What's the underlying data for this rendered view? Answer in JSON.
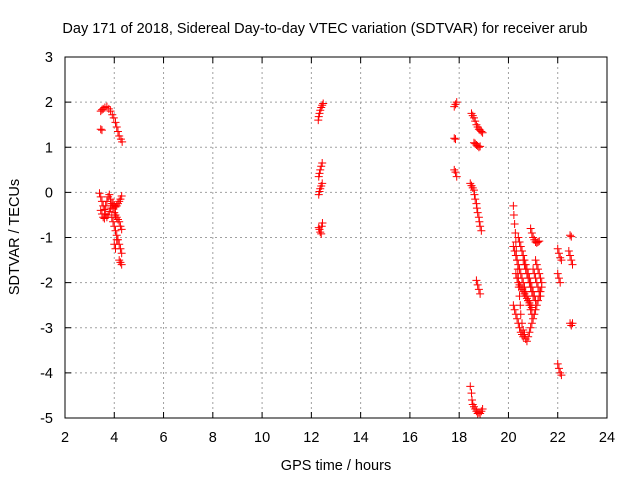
{
  "chart_data": {
    "type": "scatter",
    "title": "Day 171 of 2018, Sidereal Day-to-day VTEC variation (SDTVAR) for receiver arub",
    "xlabel": "GPS time / hours",
    "ylabel": "SDTVAR / TECUs",
    "xlim": [
      2,
      24
    ],
    "ylim": [
      -5,
      3
    ],
    "xticks": [
      2,
      4,
      6,
      8,
      10,
      12,
      14,
      16,
      18,
      20,
      22,
      24
    ],
    "yticks": [
      -5,
      -4,
      -3,
      -2,
      -1,
      0,
      1,
      2,
      3
    ],
    "grid": true,
    "marker": "+",
    "marker_color": "#ff0000",
    "series": [
      {
        "name": "SDTVAR",
        "points": [
          [
            3.45,
            1.8
          ],
          [
            3.5,
            1.83
          ],
          [
            3.55,
            1.85
          ],
          [
            3.62,
            1.88
          ],
          [
            3.7,
            1.9
          ],
          [
            3.78,
            1.85
          ],
          [
            3.85,
            1.8
          ],
          [
            3.92,
            1.72
          ],
          [
            3.98,
            1.65
          ],
          [
            4.05,
            1.55
          ],
          [
            4.1,
            1.45
          ],
          [
            4.15,
            1.35
          ],
          [
            4.2,
            1.25
          ],
          [
            4.27,
            1.18
          ],
          [
            4.32,
            1.12
          ],
          [
            3.45,
            1.4
          ],
          [
            3.5,
            1.38
          ],
          [
            3.4,
            -0.02
          ],
          [
            3.45,
            -0.1
          ],
          [
            3.5,
            -0.2
          ],
          [
            3.55,
            -0.3
          ],
          [
            3.6,
            -0.38
          ],
          [
            3.65,
            -0.48
          ],
          [
            3.7,
            -0.55
          ],
          [
            3.75,
            -0.5
          ],
          [
            3.8,
            -0.42
          ],
          [
            3.85,
            -0.35
          ],
          [
            3.9,
            -0.3
          ],
          [
            3.95,
            -0.25
          ],
          [
            4.0,
            -0.28
          ],
          [
            4.05,
            -0.32
          ],
          [
            4.1,
            -0.3
          ],
          [
            4.15,
            -0.25
          ],
          [
            4.2,
            -0.2
          ],
          [
            4.25,
            -0.15
          ],
          [
            4.3,
            -0.08
          ],
          [
            3.45,
            -0.4
          ],
          [
            3.5,
            -0.48
          ],
          [
            3.55,
            -0.55
          ],
          [
            3.6,
            -0.58
          ],
          [
            3.65,
            -0.3
          ],
          [
            3.7,
            -0.2
          ],
          [
            3.75,
            -0.1
          ],
          [
            3.8,
            -0.05
          ],
          [
            3.85,
            -0.15
          ],
          [
            3.9,
            -0.25
          ],
          [
            3.95,
            -0.35
          ],
          [
            4.0,
            -0.45
          ],
          [
            4.05,
            -0.5
          ],
          [
            4.1,
            -0.55
          ],
          [
            4.15,
            -0.6
          ],
          [
            4.2,
            -0.65
          ],
          [
            4.25,
            -0.75
          ],
          [
            4.3,
            -0.82
          ],
          [
            3.9,
            -0.55
          ],
          [
            3.95,
            -0.65
          ],
          [
            4.0,
            -0.75
          ],
          [
            4.05,
            -0.85
          ],
          [
            4.1,
            -0.95
          ],
          [
            4.15,
            -1.05
          ],
          [
            4.2,
            -1.15
          ],
          [
            4.25,
            -1.25
          ],
          [
            4.3,
            -1.35
          ],
          [
            4.0,
            -1.15
          ],
          [
            4.05,
            -1.25
          ],
          [
            4.1,
            -1.05
          ],
          [
            4.2,
            -1.5
          ],
          [
            4.25,
            -1.55
          ],
          [
            4.3,
            -1.6
          ],
          [
            12.28,
            1.6
          ],
          [
            12.3,
            1.68
          ],
          [
            12.33,
            1.75
          ],
          [
            12.36,
            1.82
          ],
          [
            12.4,
            1.88
          ],
          [
            12.44,
            1.93
          ],
          [
            12.48,
            1.97
          ],
          [
            12.3,
            0.35
          ],
          [
            12.33,
            0.42
          ],
          [
            12.36,
            0.5
          ],
          [
            12.4,
            0.58
          ],
          [
            12.44,
            0.65
          ],
          [
            12.3,
            -0.05
          ],
          [
            12.33,
            0.02
          ],
          [
            12.36,
            0.08
          ],
          [
            12.4,
            0.14
          ],
          [
            12.44,
            0.2
          ],
          [
            12.3,
            -0.78
          ],
          [
            12.33,
            -0.82
          ],
          [
            12.36,
            -0.88
          ],
          [
            12.4,
            -0.92
          ],
          [
            12.42,
            -0.75
          ],
          [
            12.45,
            -0.68
          ],
          [
            17.8,
            1.9
          ],
          [
            17.85,
            1.95
          ],
          [
            17.9,
            2.0
          ],
          [
            17.8,
            1.2
          ],
          [
            17.85,
            1.18
          ],
          [
            17.8,
            0.5
          ],
          [
            17.85,
            0.45
          ],
          [
            17.9,
            0.35
          ],
          [
            18.5,
            1.75
          ],
          [
            18.55,
            1.7
          ],
          [
            18.6,
            1.65
          ],
          [
            18.65,
            1.58
          ],
          [
            18.7,
            1.5
          ],
          [
            18.75,
            1.45
          ],
          [
            18.8,
            1.4
          ],
          [
            18.85,
            1.38
          ],
          [
            18.9,
            1.35
          ],
          [
            18.95,
            1.32
          ],
          [
            18.6,
            1.1
          ],
          [
            18.65,
            1.08
          ],
          [
            18.7,
            1.05
          ],
          [
            18.75,
            1.03
          ],
          [
            18.8,
            1.0
          ],
          [
            18.85,
            1.02
          ],
          [
            18.45,
            0.2
          ],
          [
            18.5,
            0.15
          ],
          [
            18.55,
            0.1
          ],
          [
            18.6,
            0.05
          ],
          [
            18.62,
            -0.05
          ],
          [
            18.65,
            -0.15
          ],
          [
            18.7,
            -0.25
          ],
          [
            18.72,
            -0.35
          ],
          [
            18.75,
            -0.45
          ],
          [
            18.8,
            -0.55
          ],
          [
            18.82,
            -0.65
          ],
          [
            18.85,
            -0.75
          ],
          [
            18.9,
            -0.85
          ],
          [
            18.7,
            -1.95
          ],
          [
            18.75,
            -2.05
          ],
          [
            18.8,
            -2.15
          ],
          [
            18.85,
            -2.25
          ],
          [
            18.45,
            -4.3
          ],
          [
            18.5,
            -4.45
          ],
          [
            18.52,
            -4.6
          ],
          [
            18.55,
            -4.7
          ],
          [
            18.6,
            -4.75
          ],
          [
            18.65,
            -4.8
          ],
          [
            18.7,
            -4.85
          ],
          [
            18.75,
            -4.9
          ],
          [
            18.8,
            -4.88
          ],
          [
            18.85,
            -4.9
          ],
          [
            18.9,
            -4.85
          ],
          [
            18.95,
            -4.8
          ],
          [
            20.2,
            -0.3
          ],
          [
            20.22,
            -0.5
          ],
          [
            20.25,
            -0.7
          ],
          [
            20.28,
            -0.9
          ],
          [
            20.3,
            -1.1
          ],
          [
            20.32,
            -1.3
          ],
          [
            20.35,
            -1.5
          ],
          [
            20.38,
            -1.7
          ],
          [
            20.4,
            -1.9
          ],
          [
            20.42,
            -2.1
          ],
          [
            20.45,
            -2.3
          ],
          [
            20.48,
            -2.5
          ],
          [
            20.5,
            -2.7
          ],
          [
            20.55,
            -2.9
          ],
          [
            20.6,
            -3.05
          ],
          [
            20.65,
            -3.15
          ],
          [
            20.7,
            -3.25
          ],
          [
            20.75,
            -3.3
          ],
          [
            20.8,
            -3.2
          ],
          [
            20.85,
            -3.1
          ],
          [
            20.9,
            -3.0
          ],
          [
            20.95,
            -2.9
          ],
          [
            21.0,
            -2.8
          ],
          [
            21.05,
            -2.7
          ],
          [
            21.1,
            -2.6
          ],
          [
            21.15,
            -2.5
          ],
          [
            21.2,
            -2.4
          ],
          [
            21.25,
            -2.3
          ],
          [
            21.3,
            -2.2
          ],
          [
            21.35,
            -2.1
          ],
          [
            20.2,
            -1.2
          ],
          [
            20.25,
            -1.3
          ],
          [
            20.3,
            -1.4
          ],
          [
            20.35,
            -1.5
          ],
          [
            20.4,
            -1.6
          ],
          [
            20.45,
            -1.7
          ],
          [
            20.5,
            -1.8
          ],
          [
            20.55,
            -1.9
          ],
          [
            20.6,
            -2.0
          ],
          [
            20.65,
            -2.1
          ],
          [
            20.7,
            -2.2
          ],
          [
            20.75,
            -2.3
          ],
          [
            20.8,
            -2.4
          ],
          [
            20.85,
            -2.5
          ],
          [
            20.9,
            -2.6
          ],
          [
            20.95,
            -2.7
          ],
          [
            20.4,
            -1.0
          ],
          [
            20.45,
            -1.1
          ],
          [
            20.5,
            -1.2
          ],
          [
            20.55,
            -1.3
          ],
          [
            20.6,
            -1.4
          ],
          [
            20.65,
            -1.5
          ],
          [
            20.7,
            -1.6
          ],
          [
            20.75,
            -1.7
          ],
          [
            20.8,
            -1.8
          ],
          [
            20.85,
            -1.9
          ],
          [
            20.9,
            -2.0
          ],
          [
            20.95,
            -2.1
          ],
          [
            21.0,
            -2.2
          ],
          [
            21.05,
            -2.3
          ],
          [
            21.1,
            -2.4
          ],
          [
            20.2,
            -2.5
          ],
          [
            20.25,
            -2.6
          ],
          [
            20.3,
            -2.7
          ],
          [
            20.35,
            -2.8
          ],
          [
            20.4,
            -2.9
          ],
          [
            20.45,
            -3.0
          ],
          [
            20.5,
            -3.1
          ],
          [
            20.55,
            -3.15
          ],
          [
            20.6,
            -3.2
          ],
          [
            20.9,
            -0.8
          ],
          [
            20.95,
            -0.9
          ],
          [
            21.0,
            -1.0
          ],
          [
            21.05,
            -1.05
          ],
          [
            21.1,
            -1.1
          ],
          [
            21.15,
            -1.12
          ],
          [
            21.2,
            -1.1
          ],
          [
            21.25,
            -1.08
          ],
          [
            21.1,
            -1.5
          ],
          [
            21.15,
            -1.6
          ],
          [
            21.2,
            -1.7
          ],
          [
            21.25,
            -1.8
          ],
          [
            21.3,
            -1.9
          ],
          [
            21.35,
            -2.0
          ],
          [
            20.3,
            -1.8
          ],
          [
            20.35,
            -1.9
          ],
          [
            20.4,
            -2.0
          ],
          [
            20.45,
            -2.05
          ],
          [
            20.5,
            -2.1
          ],
          [
            20.55,
            -2.15
          ],
          [
            20.6,
            -2.2
          ],
          [
            20.65,
            -2.25
          ],
          [
            20.7,
            -2.3
          ],
          [
            20.75,
            -2.35
          ],
          [
            20.8,
            -2.4
          ],
          [
            20.85,
            -2.45
          ],
          [
            20.9,
            -2.5
          ],
          [
            20.95,
            -2.55
          ],
          [
            20.6,
            -1.5
          ],
          [
            20.65,
            -1.6
          ],
          [
            20.7,
            -1.7
          ],
          [
            20.75,
            -1.8
          ],
          [
            20.8,
            -1.9
          ],
          [
            20.85,
            -2.0
          ],
          [
            20.9,
            -2.1
          ],
          [
            20.95,
            -2.2
          ],
          [
            21.0,
            -2.3
          ],
          [
            21.0,
            -1.7
          ],
          [
            21.05,
            -1.8
          ],
          [
            21.1,
            -1.9
          ],
          [
            21.15,
            -2.0
          ],
          [
            21.2,
            -2.1
          ],
          [
            21.25,
            -2.2
          ],
          [
            21.3,
            -2.3
          ],
          [
            22.0,
            -1.25
          ],
          [
            22.05,
            -1.35
          ],
          [
            22.1,
            -1.45
          ],
          [
            22.15,
            -1.5
          ],
          [
            22.0,
            -1.8
          ],
          [
            22.05,
            -1.9
          ],
          [
            22.1,
            -2.0
          ],
          [
            22.0,
            -3.8
          ],
          [
            22.05,
            -3.9
          ],
          [
            22.1,
            -4.0
          ],
          [
            22.15,
            -4.05
          ],
          [
            22.45,
            -1.3
          ],
          [
            22.5,
            -1.4
          ],
          [
            22.55,
            -1.5
          ],
          [
            22.6,
            -1.6
          ],
          [
            22.5,
            -0.95
          ],
          [
            22.55,
            -0.98
          ],
          [
            22.5,
            -2.9
          ],
          [
            22.55,
            -2.95
          ],
          [
            22.6,
            -2.9
          ]
        ]
      }
    ]
  }
}
